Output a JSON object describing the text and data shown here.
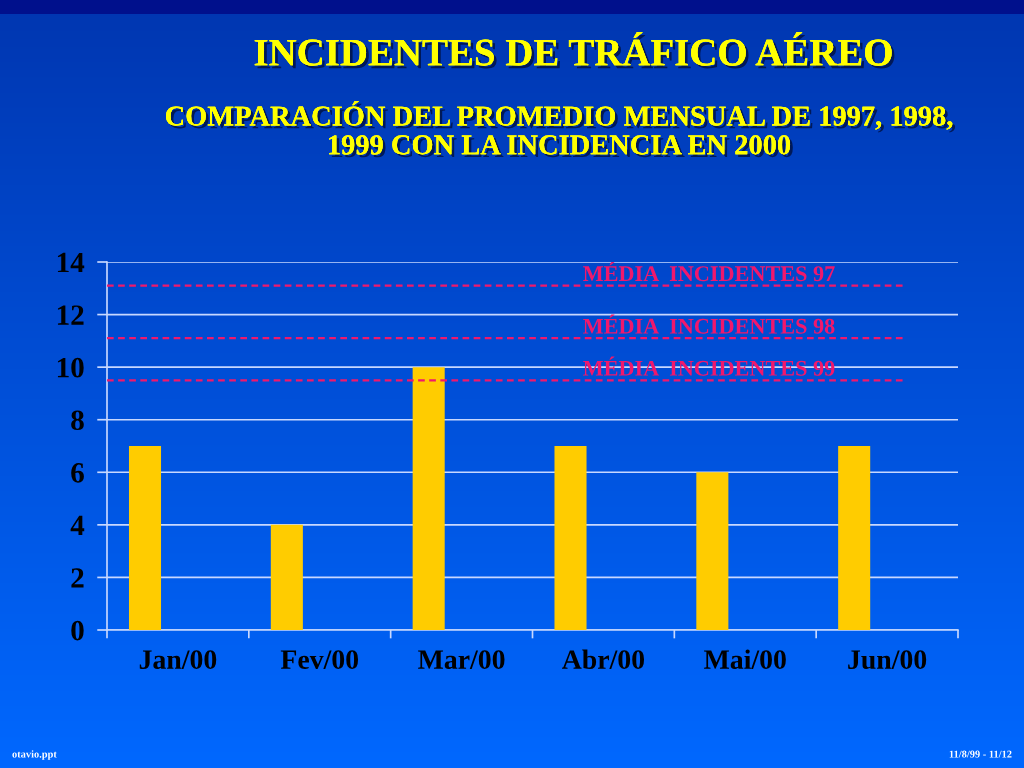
{
  "chart_data": {
    "type": "bar",
    "title": "INCIDENTES DE TRÁFICO AÉREO",
    "subtitle": "COMPARACIÓN DEL PROMEDIO MENSUAL DE 1997, 1998,\n1999 CON LA INCIDENCIA EN 2000",
    "categories": [
      "Jan/00",
      "Fev/00",
      "Mar/00",
      "Abr/00",
      "Mai/00",
      "Jun/00"
    ],
    "values": [
      7,
      4,
      10,
      7,
      6,
      7
    ],
    "color": "#ffcc00",
    "ylim": [
      0,
      14
    ],
    "yticks": [
      0,
      2,
      4,
      6,
      8,
      10,
      12,
      14
    ],
    "grid": "y",
    "ref_lines": [
      {
        "axis": "y",
        "value": 13.1,
        "label": "MÉDIA  INCIDENTES 97",
        "color": "#f0186c",
        "line_style": "dashed"
      },
      {
        "axis": "y",
        "value": 11.1,
        "label": "MÉDIA  INCIDENTES 98",
        "color": "#f0186c",
        "line_style": "dashed"
      },
      {
        "axis": "y",
        "value": 9.5,
        "label": "MÉDIA  INCIDENTES 99",
        "color": "#f0186c",
        "line_style": "dashed"
      }
    ],
    "annotations": [
      "otavio.ppt",
      "11/8/99 - 11/12"
    ]
  }
}
